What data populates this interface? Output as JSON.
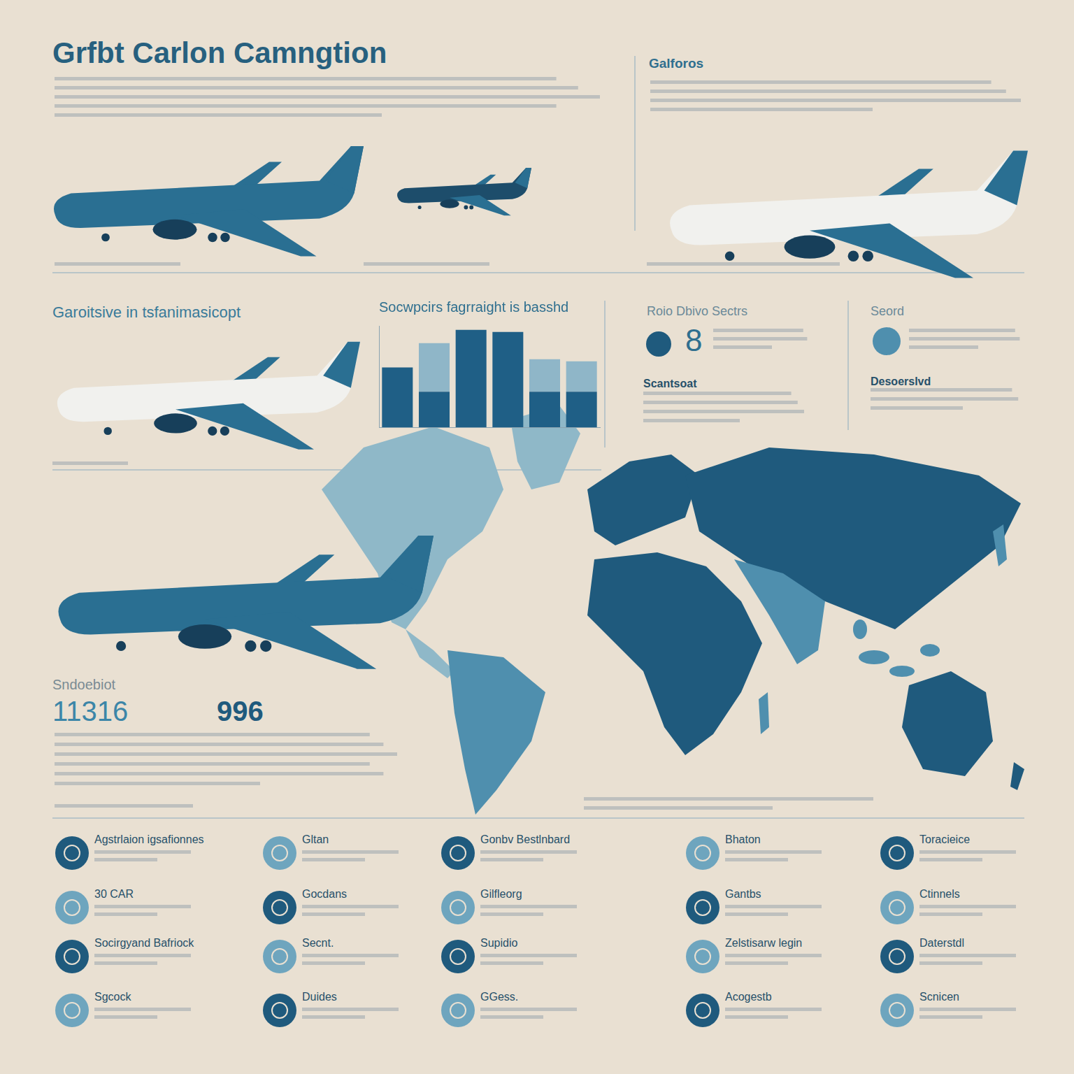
{
  "title": "Grfbt Carlon Camngtion",
  "top_right_heading": "Galforos",
  "section_heading": "Garoitsive in tsfanimasicopt",
  "chart_data": {
    "type": "bar",
    "title": "Socwpcirs fagrraight is basshd",
    "categories": [
      null,
      null,
      null,
      null,
      null,
      null
    ],
    "series": [
      {
        "color": "#1f5f86",
        "values": [
          59,
          35,
          96,
          94,
          35,
          35
        ]
      },
      {
        "color": "#8fb6c8",
        "values": [
          0,
          48,
          0,
          0,
          32,
          30
        ]
      }
    ],
    "stacked": true,
    "ylim": [
      0,
      100
    ],
    "yticks": [
      0,
      100
    ],
    "grid": false,
    "tick_labels": false
  },
  "stat_panel": {
    "heading": "Roio Dbivo Sectrs",
    "number": 8,
    "subheading": "Scantsoat"
  },
  "side_panel": {
    "heading": "Seord",
    "subheading": "Desoerslvd"
  },
  "stats": {
    "label": "Sndoebiot",
    "values": [
      11316,
      996
    ]
  },
  "icon_grid": [
    [
      "Agstrlaion igsafionnes",
      "Gltan",
      "Gonbv Bestlnbard",
      "Bhaton",
      "Toracieice"
    ],
    [
      "30 CAR",
      "Gocdans",
      "Gilfleorg",
      "Gantbs",
      "Ctinnels"
    ],
    [
      "Socirgyand Bafriock",
      "Secnt.",
      "Supidio",
      "Zelstisarw legin",
      "Daterstdl"
    ],
    [
      "Sgcock",
      "Duides",
      "GGess.",
      "Acogestb",
      "Scnicen"
    ]
  ]
}
